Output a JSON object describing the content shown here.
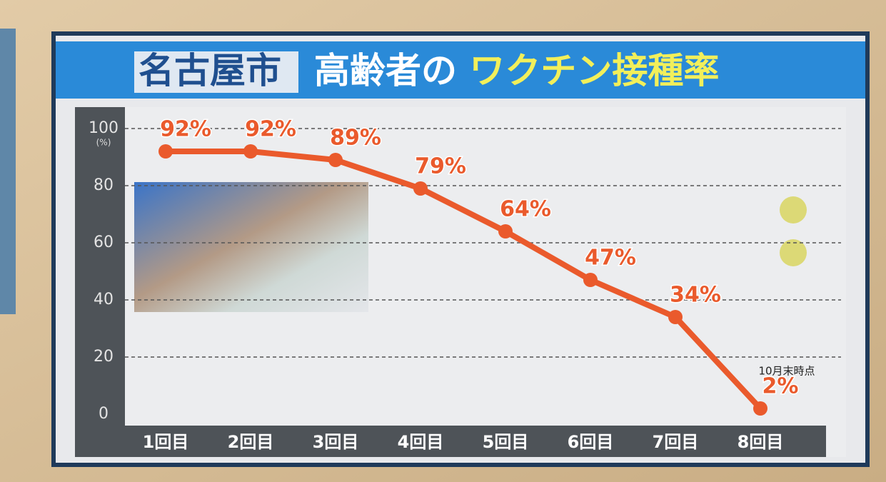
{
  "chart_data": {
    "type": "line",
    "title_parts": [
      "名古屋市",
      "高齢者の",
      "ワクチン接種率"
    ],
    "unit_label": "(%)",
    "annotation": "10月末時点",
    "categories": [
      "1回目",
      "2回目",
      "3回目",
      "4回目",
      "5回目",
      "6回目",
      "7回目",
      "8回目"
    ],
    "values": [
      92,
      92,
      89,
      79,
      64,
      47,
      34,
      2
    ],
    "value_labels": [
      "92%",
      "92%",
      "89%",
      "79%",
      "64%",
      "47%",
      "34%",
      "2%"
    ],
    "color": "#ea5a2c",
    "ylim": [
      0,
      100
    ],
    "yticks": [
      0,
      20,
      40,
      60,
      80,
      100
    ],
    "grid": true
  }
}
